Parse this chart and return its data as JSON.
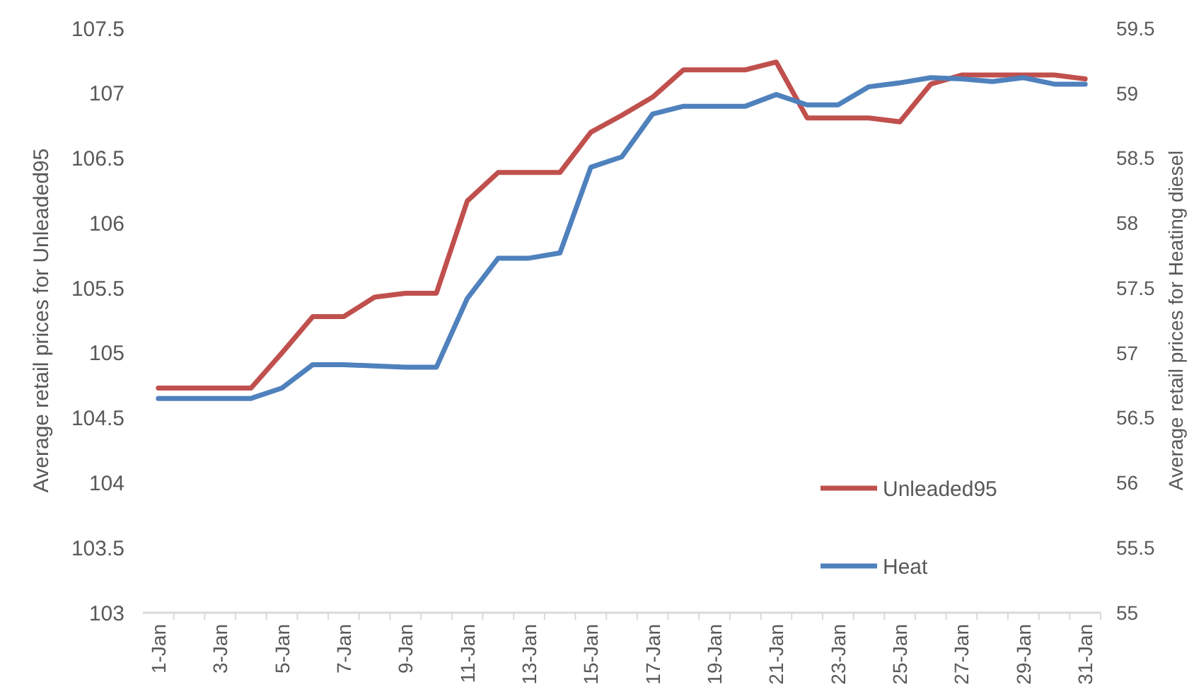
{
  "chart_data": {
    "type": "line",
    "categories": [
      "1-Jan",
      null,
      "3-Jan",
      null,
      "5-Jan",
      null,
      "7-Jan",
      null,
      "9-Jan",
      null,
      "11-Jan",
      null,
      "13-Jan",
      null,
      "15-Jan",
      null,
      "17-Jan",
      null,
      "19-Jan",
      null,
      "21-Jan",
      null,
      "23-Jan",
      null,
      "25-Jan",
      null,
      "27-Jan",
      null,
      "29-Jan",
      null,
      "31-Jan"
    ],
    "series": [
      {
        "name": "Unleaded95",
        "color": "#c0504d",
        "values": [
          104.73,
          104.73,
          104.73,
          104.73,
          105.0,
          105.28,
          105.28,
          105.43,
          105.46,
          105.46,
          106.17,
          106.39,
          106.39,
          106.39,
          106.7,
          106.83,
          106.97,
          107.18,
          107.18,
          107.18,
          107.24,
          106.81,
          106.81,
          106.81,
          106.78,
          107.07,
          107.14,
          107.14,
          107.14,
          107.14,
          107.11
        ]
      },
      {
        "name": "Heat",
        "color": "#4f81bd",
        "axis": "y2",
        "values": [
          56.65,
          56.65,
          56.65,
          56.65,
          56.73,
          56.91,
          56.91,
          56.9,
          56.89,
          56.89,
          57.42,
          57.73,
          57.73,
          57.77,
          58.43,
          58.51,
          58.84,
          58.9,
          58.9,
          58.9,
          58.99,
          58.91,
          58.91,
          59.05,
          59.08,
          59.12,
          59.11,
          59.09,
          59.12,
          59.07,
          59.07
        ]
      }
    ],
    "ylabel": "Average retail prices for Unleaded95",
    "y2label": "Average retail prices for Heating diesel",
    "ylim": [
      103,
      107.5
    ],
    "yticks": [
      103,
      103.5,
      104,
      104.5,
      105,
      105.5,
      106,
      106.5,
      107,
      107.5
    ],
    "y2lim": [
      55,
      59.5
    ],
    "y2ticks": [
      55,
      55.5,
      56,
      56.5,
      57,
      57.5,
      58,
      58.5,
      59,
      59.5
    ],
    "legend": "bottom right",
    "grid": false,
    "marker": "none",
    "line_style": "solid"
  }
}
